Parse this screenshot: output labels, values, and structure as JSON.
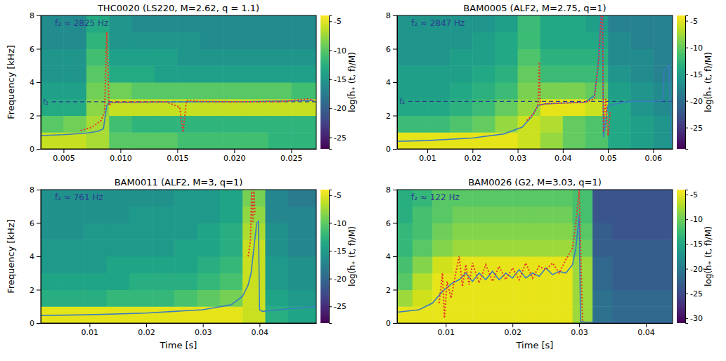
{
  "chart_data": [
    {
      "type": "heatmap",
      "title": "THC0020 (LS220, M=2.62, q = 1.1)",
      "annotation": "f₂ ≈ 2825 Hz",
      "y_label": "Frequency [kHz]",
      "colorbar_label": "log(h̃₊ (t, f)/M)",
      "xlim": [
        0.003,
        0.0272
      ],
      "xticks": [
        0.005,
        {
          "value": 0.01,
          "label": "0.010"
        },
        0.015,
        {
          "value": 0.02,
          "label": "0.020"
        },
        0.025
      ],
      "ylim": [
        0,
        8
      ],
      "yticks": [
        0,
        2,
        4,
        6,
        8
      ],
      "heatmap": {
        "x": [
          0.003,
          0.005,
          0.007,
          0.009,
          0.011,
          0.013,
          0.015,
          0.017,
          0.019,
          0.021,
          0.023,
          0.025,
          0.0272
        ],
        "y": [
          0,
          1,
          2,
          3,
          4,
          5,
          6,
          7,
          8
        ],
        "z": [
          [
            -6,
            -6,
            -7,
            -10,
            -10,
            -10,
            -11,
            -11,
            -11,
            -11,
            -12,
            -12
          ],
          [
            -10,
            -9,
            -7,
            -11,
            -12,
            -12,
            -12,
            -12,
            -12,
            -12,
            -12,
            -12
          ],
          [
            -13,
            -13,
            -8,
            -6,
            -6,
            -6,
            -6,
            -6,
            -6,
            -6,
            -6,
            -6
          ],
          [
            -14,
            -14,
            -9,
            -9,
            -10,
            -10,
            -10,
            -10,
            -10,
            -10,
            -10,
            -11
          ],
          [
            -15,
            -15,
            -10,
            -13,
            -13,
            -14,
            -14,
            -14,
            -14,
            -14,
            -14,
            -14
          ],
          [
            -15,
            -15,
            -11,
            -14,
            -14,
            -14,
            -15,
            -15,
            -15,
            -15,
            -15,
            -15
          ],
          [
            -16,
            -16,
            -12,
            -15,
            -15,
            -15,
            -15,
            -16,
            -16,
            -16,
            -16,
            -16
          ],
          [
            -16,
            -16,
            -13,
            -15,
            -16,
            -16,
            -16,
            -16,
            -16,
            -16,
            -16,
            -16
          ]
        ]
      },
      "colorbar": {
        "range": [
          -27,
          -4
        ],
        "ticks": [
          -5,
          -10,
          -15,
          -20,
          -25
        ]
      },
      "hline": {
        "value": 2.825,
        "label": "f₂",
        "color": "#2b3d8f",
        "line_style": "dashed"
      },
      "series": [
        {
          "type": "line",
          "color": "#3b7dbf",
          "line_style": "solid",
          "x": [
            0.003,
            0.005,
            0.007,
            0.008,
            0.0085,
            0.0088,
            0.009,
            0.012,
            0.015,
            0.018,
            0.021,
            0.024,
            0.027
          ],
          "values": [
            0.8,
            0.85,
            0.95,
            1.05,
            1.2,
            2.6,
            2.78,
            2.8,
            2.82,
            2.83,
            2.83,
            2.87,
            2.9
          ]
        },
        {
          "type": "line",
          "color": "#e8342a",
          "line_style": "dotted",
          "x": [
            0.0065,
            0.0075,
            0.0083,
            0.0086,
            0.0088,
            0.009,
            0.0093,
            0.011,
            0.014,
            0.0152,
            0.0155,
            0.0158,
            0.017,
            0.02,
            0.024,
            0.0265,
            0.027
          ],
          "values": [
            1.1,
            1.3,
            1.7,
            2.2,
            7.0,
            2.6,
            2.8,
            2.8,
            2.82,
            2.5,
            1.0,
            2.9,
            2.85,
            2.82,
            2.83,
            3.0,
            2.9
          ]
        }
      ]
    },
    {
      "type": "heatmap",
      "title": "BAM0005 (ALF2, M=2.75, q=1)",
      "annotation": "f₂ ≈ 2847 Hz",
      "colorbar_label": "log(h̃₊ (t, f)/M)",
      "xlim": [
        0.0033,
        0.0643
      ],
      "xticks": [
        0.01,
        0.02,
        0.03,
        0.04,
        0.05,
        0.06
      ],
      "ylim": [
        0,
        8
      ],
      "yticks": [
        0,
        2,
        4,
        6,
        8
      ],
      "heatmap": {
        "x": [
          0.0033,
          0.01,
          0.015,
          0.02,
          0.025,
          0.03,
          0.035,
          0.04,
          0.045,
          0.05,
          0.055,
          0.06,
          0.0643
        ],
        "y": [
          0,
          1,
          2,
          3,
          4,
          5,
          6,
          7,
          8
        ],
        "z": [
          [
            -5,
            -5,
            -5,
            -5,
            -5,
            -6,
            -8,
            -10,
            -11,
            -14,
            -15,
            -16
          ],
          [
            -12,
            -12,
            -11,
            -10,
            -8,
            -6,
            -7,
            -10,
            -11,
            -14,
            -15,
            -16
          ],
          [
            -14,
            -14,
            -13,
            -12,
            -10,
            -8,
            -5,
            -5,
            -6,
            -14,
            -16,
            -17
          ],
          [
            -15,
            -15,
            -14,
            -13,
            -12,
            -9,
            -9,
            -9,
            -10,
            -15,
            -16,
            -17
          ],
          [
            -15,
            -15,
            -15,
            -14,
            -13,
            -10,
            -12,
            -12,
            -12,
            -16,
            -17,
            -18
          ],
          [
            -16,
            -16,
            -15,
            -15,
            -14,
            -11,
            -13,
            -13,
            -13,
            -17,
            -17,
            -18
          ],
          [
            -16,
            -16,
            -16,
            -15,
            -14,
            -12,
            -14,
            -14,
            -14,
            -17,
            -18,
            -18
          ],
          [
            -16,
            -16,
            -16,
            -16,
            -15,
            -12,
            -14,
            -14,
            -15,
            -18,
            -18,
            -18
          ]
        ]
      },
      "colorbar": {
        "range": [
          -29,
          -4
        ],
        "ticks": [
          -5,
          -10,
          -15,
          -20,
          -25
        ]
      },
      "hline": {
        "value": 2.847,
        "label": "f₂",
        "color": "#2b3d8f",
        "line_style": "dashed"
      },
      "series": [
        {
          "type": "line",
          "color": "#3b7dbf",
          "line_style": "solid",
          "x": [
            0.0033,
            0.01,
            0.02,
            0.027,
            0.031,
            0.033,
            0.0345,
            0.036,
            0.04,
            0.045,
            0.047,
            0.0478,
            0.0484,
            0.0488,
            0.049,
            0.05,
            0.055,
            0.06,
            0.0622,
            0.0624,
            0.0635,
            0.064
          ],
          "values": [
            0.45,
            0.5,
            0.65,
            0.9,
            1.3,
            1.9,
            2.6,
            2.7,
            2.75,
            2.8,
            3.2,
            5.0,
            8.0,
            8.0,
            0.7,
            2.6,
            2.85,
            2.85,
            2.9,
            4.7,
            5.0,
            0.3
          ]
        },
        {
          "type": "line",
          "color": "#e8342a",
          "line_style": "dotted",
          "x": [
            0.032,
            0.0335,
            0.0345,
            0.0348,
            0.035,
            0.036,
            0.04,
            0.045,
            0.047,
            0.048,
            0.0485,
            0.0488,
            0.049,
            0.0495,
            0.05,
            0.0505
          ],
          "values": [
            1.7,
            2.1,
            2.6,
            5.2,
            2.6,
            2.7,
            2.75,
            2.8,
            3.0,
            5.5,
            8.0,
            8.0,
            1.0,
            3.0,
            0.8,
            2.2
          ]
        }
      ]
    },
    {
      "type": "heatmap",
      "title": "BAM0011 (ALF2, M=3, q=1)",
      "annotation": "f₂ ≈ 761 Hz",
      "x_label": "Time [s]",
      "y_label": "Frequency [kHz]",
      "colorbar_label": "log(h̃₊ (t, f)/M)",
      "xlim": [
        0.0014,
        0.05
      ],
      "xticks": [
        0.01,
        0.02,
        0.03,
        0.04
      ],
      "ylim": [
        0,
        8
      ],
      "yticks": [
        0,
        2,
        4,
        6,
        8
      ],
      "heatmap": {
        "x": [
          0.0014,
          0.005,
          0.009,
          0.013,
          0.017,
          0.021,
          0.025,
          0.029,
          0.033,
          0.037,
          0.041,
          0.045,
          0.05
        ],
        "y": [
          0,
          1,
          2,
          3,
          4,
          5,
          6,
          7,
          8
        ],
        "z": [
          [
            -5,
            -5,
            -5,
            -5,
            -5,
            -5,
            -5,
            -5,
            -5,
            -6,
            -13,
            -14
          ],
          [
            -13,
            -13,
            -13,
            -12,
            -12,
            -12,
            -11,
            -10,
            -9,
            -6,
            -14,
            -15
          ],
          [
            -14,
            -14,
            -14,
            -14,
            -13,
            -13,
            -13,
            -12,
            -11,
            -6,
            -15,
            -16
          ],
          [
            -15,
            -15,
            -15,
            -14,
            -14,
            -14,
            -14,
            -13,
            -12,
            -6,
            -15,
            -16
          ],
          [
            -15,
            -15,
            -15,
            -15,
            -15,
            -15,
            -14,
            -14,
            -13,
            -6,
            -16,
            -17
          ],
          [
            -16,
            -16,
            -15,
            -15,
            -15,
            -15,
            -15,
            -14,
            -13,
            -7,
            -16,
            -17
          ],
          [
            -16,
            -16,
            -16,
            -16,
            -15,
            -15,
            -15,
            -15,
            -14,
            -8,
            -17,
            -17
          ],
          [
            -16,
            -16,
            -16,
            -16,
            -16,
            -16,
            -15,
            -15,
            -14,
            -9,
            -17,
            -18
          ]
        ]
      },
      "colorbar": {
        "range": [
          -28,
          -4
        ],
        "ticks": [
          -5,
          -10,
          -15,
          -20,
          -25
        ]
      },
      "series": [
        {
          "type": "line",
          "color": "#3b7dbf",
          "line_style": "solid",
          "x": [
            0.0014,
            0.01,
            0.02,
            0.03,
            0.035,
            0.037,
            0.038,
            0.0385,
            0.039,
            0.0395,
            0.0398,
            0.04,
            0.0405,
            0.045,
            0.05
          ],
          "values": [
            0.45,
            0.5,
            0.6,
            0.8,
            1.1,
            1.6,
            2.3,
            3.0,
            4.5,
            6.0,
            6.1,
            0.8,
            0.7,
            0.85,
            1.0
          ]
        },
        {
          "type": "line",
          "color": "#e8342a",
          "line_style": "dotted",
          "x": [
            0.038,
            0.0384,
            0.0386,
            0.0388,
            0.039,
            0.0392
          ],
          "values": [
            4.0,
            5.0,
            8.0,
            6.0,
            8.0,
            6.5
          ]
        }
      ]
    },
    {
      "type": "heatmap",
      "title": "BAM0026 (G2, M=3.03, q=1)",
      "annotation": "f₂ ≈ 122 Hz",
      "x_label": "Time [s]",
      "colorbar_label": "log(h̃₊ (t, f)/M)",
      "xlim": [
        0.0027,
        0.044
      ],
      "xticks": [
        0.01,
        0.02,
        0.03,
        0.04
      ],
      "ylim": [
        0,
        8
      ],
      "yticks": [
        0,
        2,
        4,
        6,
        8
      ],
      "heatmap": {
        "x": [
          0.0027,
          0.005,
          0.008,
          0.011,
          0.014,
          0.017,
          0.02,
          0.023,
          0.026,
          0.029,
          0.032,
          0.035,
          0.044
        ],
        "y": [
          0,
          1,
          2,
          3,
          4,
          5,
          6,
          7,
          8
        ],
        "z": [
          [
            -5,
            -5,
            -5,
            -5,
            -5,
            -5,
            -5,
            -5,
            -5,
            -8,
            -21,
            -22
          ],
          [
            -8,
            -6,
            -5,
            -5,
            -5,
            -5,
            -5,
            -5,
            -5,
            -8,
            -21,
            -22
          ],
          [
            -11,
            -7,
            -5,
            -5,
            -5,
            -5,
            -5,
            -5,
            -5,
            -8,
            -22,
            -23
          ],
          [
            -12,
            -9,
            -6,
            -5,
            -5,
            -5,
            -5,
            -5,
            -5,
            -8,
            -22,
            -23
          ],
          [
            -13,
            -11,
            -9,
            -8,
            -8,
            -8,
            -8,
            -8,
            -8,
            -10,
            -23,
            -23
          ],
          [
            -13,
            -12,
            -10,
            -9,
            -9,
            -9,
            -9,
            -9,
            -9,
            -11,
            -23,
            -24
          ],
          [
            -14,
            -12,
            -11,
            -10,
            -10,
            -10,
            -10,
            -10,
            -10,
            -12,
            -24,
            -24
          ],
          [
            -14,
            -13,
            -11,
            -11,
            -11,
            -11,
            -11,
            -11,
            -11,
            -12,
            -24,
            -24
          ]
        ]
      },
      "colorbar": {
        "range": [
          -31,
          -4
        ],
        "ticks": [
          -5,
          -10,
          -15,
          -20,
          -25,
          -30
        ]
      },
      "series": [
        {
          "type": "line",
          "color": "#3b7dbf",
          "line_style": "solid",
          "x": [
            0.0027,
            0.006,
            0.008,
            0.0095,
            0.011,
            0.012,
            0.013,
            0.014,
            0.015,
            0.016,
            0.017,
            0.018,
            0.019,
            0.02,
            0.021,
            0.022,
            0.023,
            0.024,
            0.025,
            0.026,
            0.027,
            0.028,
            0.029,
            0.0295,
            0.03,
            0.0302,
            0.031,
            0.044
          ],
          "values": [
            0.65,
            0.8,
            1.2,
            1.9,
            2.4,
            2.6,
            3.0,
            2.5,
            3.0,
            2.6,
            3.1,
            2.6,
            3.0,
            2.7,
            3.2,
            2.7,
            3.0,
            2.8,
            3.3,
            2.9,
            3.1,
            3.0,
            3.5,
            4.5,
            6.5,
            0.1,
            0.05,
            0.05
          ]
        },
        {
          "type": "line",
          "color": "#e8342a",
          "line_style": "dotted",
          "x": [
            0.009,
            0.0095,
            0.0098,
            0.0102,
            0.0108,
            0.0115,
            0.012,
            0.0125,
            0.013,
            0.0135,
            0.014,
            0.015,
            0.016,
            0.017,
            0.018,
            0.019,
            0.02,
            0.021,
            0.022,
            0.023,
            0.024,
            0.025,
            0.026,
            0.027,
            0.028,
            0.029,
            0.0295,
            0.03,
            0.0305
          ],
          "values": [
            1.2,
            3.0,
            0.3,
            2.5,
            1.5,
            3.0,
            4.0,
            2.2,
            3.5,
            2.3,
            3.6,
            2.4,
            3.5,
            2.5,
            3.4,
            2.6,
            3.3,
            2.6,
            3.6,
            2.7,
            3.4,
            3.2,
            3.6,
            3.0,
            3.8,
            4.5,
            6.0,
            8.0,
            0.1
          ]
        }
      ]
    }
  ]
}
